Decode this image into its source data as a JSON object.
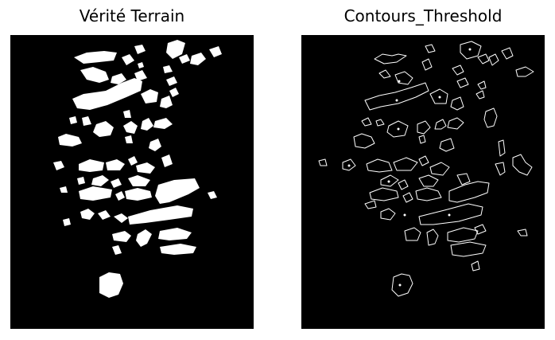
{
  "panels": {
    "left": {
      "title": "Vérité Terrain"
    },
    "right": {
      "title": "Contours_Threshold"
    }
  },
  "colors": {
    "background": "#000000",
    "mask_fill": "#ffffff",
    "contour_stroke": "#ffffff",
    "page": "#ffffff",
    "title_text": "#000000"
  }
}
